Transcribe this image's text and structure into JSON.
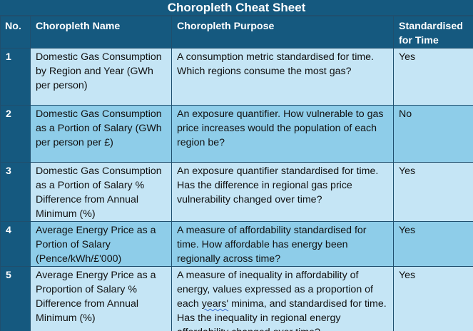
{
  "title": "Choropleth Cheat Sheet",
  "columns": {
    "no": "No.",
    "name": "Choropleth Name",
    "purpose": "Choropleth Purpose",
    "standardised": "Standardised for Time"
  },
  "rows": [
    {
      "no": "1",
      "name": "Domestic Gas Consumption by Region and Year (GWh per person)",
      "purpose": "A consumption metric standardised for time. Which regions consume the most gas?",
      "standardised": "Yes"
    },
    {
      "no": "2",
      "name": "Domestic Gas Consumption as a Portion of Salary (GWh per person per £)",
      "purpose": "An exposure quantifier. How vulnerable to gas price increases would the population of each region be?",
      "standardised": "No"
    },
    {
      "no": "3",
      "name": "Domestic Gas Consumption as a Portion of Salary % Difference from Annual Minimum (%)",
      "purpose": "An exposure quantifier standardised for time. Has the difference in regional gas price vulnerability changed over time?",
      "standardised": "Yes"
    },
    {
      "no": "4",
      "name": "Average Energy Price as a Portion of Salary (Pence/kWh/£'000)",
      "purpose": "A measure of affordability standardised for time. How affordable has energy been regionally across time?",
      "standardised": "Yes"
    },
    {
      "no": "5",
      "name": "Average Energy Price as a Proportion of Salary % Difference from Annual Minimum (%)",
      "purpose_before": "A measure of inequality in affordability of energy, values expressed as a proportion of each ",
      "purpose_flagged_word": "years'",
      "purpose_after": " minima, and standardised for time. Has the inequality in regional energy affordability changed over time?",
      "standardised": "Yes"
    }
  ]
}
